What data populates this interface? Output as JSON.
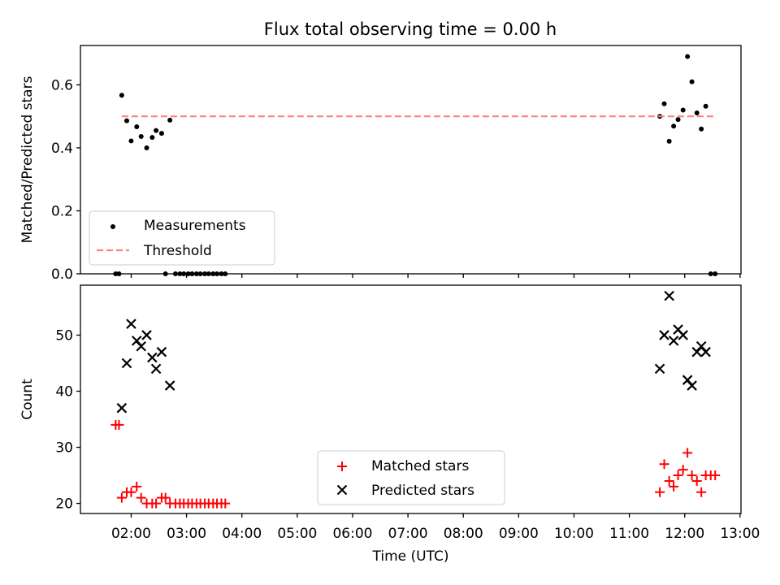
{
  "chart_data": {
    "title": "Flux total observing time = 0.00 h",
    "xlabel": "Time (UTC)",
    "x_unit": "hours UTC",
    "xlim": [
      1.0833,
      13.0167
    ],
    "xticks": [
      2,
      3,
      4,
      5,
      6,
      7,
      8,
      9,
      10,
      11,
      12,
      13
    ],
    "xtick_labels": [
      "02:00",
      "03:00",
      "04:00",
      "05:00",
      "06:00",
      "07:00",
      "08:00",
      "09:00",
      "10:00",
      "11:00",
      "12:00",
      "13:00"
    ],
    "panels": [
      {
        "type": "scatter",
        "ylabel": "Matched/Predicted stars",
        "ylim": [
          0,
          0.725
        ],
        "yticks": [
          0.0,
          0.2,
          0.4,
          0.6
        ],
        "ytick_labels": [
          "0.0",
          "0.2",
          "0.4",
          "0.6"
        ],
        "legend_position": "lower-left",
        "series": [
          {
            "name": "Measurements",
            "marker": "dot",
            "color": "#000000",
            "points": [
              [
                1.72,
                0
              ],
              [
                1.78,
                0
              ],
              [
                1.83,
                0.567
              ],
              [
                1.92,
                0.486
              ],
              [
                2.0,
                0.422
              ],
              [
                2.1,
                0.467
              ],
              [
                2.18,
                0.436
              ],
              [
                2.28,
                0.4
              ],
              [
                2.38,
                0.433
              ],
              [
                2.45,
                0.455
              ],
              [
                2.55,
                0.446
              ],
              [
                2.62,
                0
              ],
              [
                2.7,
                0.488
              ],
              [
                2.8,
                0
              ],
              [
                2.88,
                0
              ],
              [
                2.95,
                0
              ],
              [
                3.03,
                0
              ],
              [
                3.1,
                0
              ],
              [
                3.18,
                0
              ],
              [
                3.25,
                0
              ],
              [
                3.33,
                0
              ],
              [
                3.4,
                0
              ],
              [
                3.48,
                0
              ],
              [
                3.55,
                0
              ],
              [
                3.63,
                0
              ],
              [
                3.7,
                0
              ],
              [
                11.55,
                0.5
              ],
              [
                11.63,
                0.54
              ],
              [
                11.72,
                0.421
              ],
              [
                11.8,
                0.469
              ],
              [
                11.88,
                0.49
              ],
              [
                11.97,
                0.52
              ],
              [
                12.05,
                0.69
              ],
              [
                12.13,
                0.61
              ],
              [
                12.22,
                0.511
              ],
              [
                12.3,
                0.46
              ],
              [
                12.38,
                0.532
              ],
              [
                12.47,
                0
              ],
              [
                12.55,
                0
              ]
            ]
          },
          {
            "name": "Threshold",
            "style": "dashed",
            "color": "#ff8080",
            "x": [
              1.83,
              12.55
            ],
            "y": [
              0.5,
              0.5
            ]
          }
        ]
      },
      {
        "type": "scatter",
        "ylabel": "Count",
        "ylim": [
          18.2,
          58.9
        ],
        "yticks": [
          20,
          30,
          40,
          50
        ],
        "ytick_labels": [
          "20",
          "30",
          "40",
          "50"
        ],
        "legend_position": "lower-center",
        "series": [
          {
            "name": "Matched stars",
            "marker": "plus",
            "color": "#ff0000",
            "points": [
              [
                1.72,
                34
              ],
              [
                1.78,
                34
              ],
              [
                1.83,
                21
              ],
              [
                1.92,
                22
              ],
              [
                2.0,
                22
              ],
              [
                2.1,
                23
              ],
              [
                2.18,
                21
              ],
              [
                2.28,
                20
              ],
              [
                2.38,
                20
              ],
              [
                2.45,
                20
              ],
              [
                2.55,
                21
              ],
              [
                2.62,
                21
              ],
              [
                2.7,
                20
              ],
              [
                2.8,
                20
              ],
              [
                2.88,
                20
              ],
              [
                2.95,
                20
              ],
              [
                3.03,
                20
              ],
              [
                3.1,
                20
              ],
              [
                3.18,
                20
              ],
              [
                3.25,
                20
              ],
              [
                3.33,
                20
              ],
              [
                3.4,
                20
              ],
              [
                3.48,
                20
              ],
              [
                3.55,
                20
              ],
              [
                3.63,
                20
              ],
              [
                3.7,
                20
              ],
              [
                11.55,
                22
              ],
              [
                11.63,
                27
              ],
              [
                11.72,
                24
              ],
              [
                11.8,
                23
              ],
              [
                11.88,
                25
              ],
              [
                11.97,
                26
              ],
              [
                12.05,
                29
              ],
              [
                12.13,
                25
              ],
              [
                12.22,
                24
              ],
              [
                12.3,
                22
              ],
              [
                12.38,
                25
              ],
              [
                12.47,
                25
              ],
              [
                12.55,
                25
              ]
            ]
          },
          {
            "name": "Predicted stars",
            "marker": "x",
            "color": "#000000",
            "points": [
              [
                1.83,
                37
              ],
              [
                1.92,
                45
              ],
              [
                2.0,
                52
              ],
              [
                2.1,
                49
              ],
              [
                2.18,
                48
              ],
              [
                2.28,
                50
              ],
              [
                2.38,
                46
              ],
              [
                2.45,
                44
              ],
              [
                2.55,
                47
              ],
              [
                2.7,
                41
              ],
              [
                11.55,
                44
              ],
              [
                11.63,
                50
              ],
              [
                11.72,
                57
              ],
              [
                11.8,
                49
              ],
              [
                11.88,
                51
              ],
              [
                11.97,
                50
              ],
              [
                12.05,
                42
              ],
              [
                12.13,
                41
              ],
              [
                12.22,
                47
              ],
              [
                12.3,
                48
              ],
              [
                12.38,
                47
              ]
            ]
          }
        ]
      }
    ]
  }
}
